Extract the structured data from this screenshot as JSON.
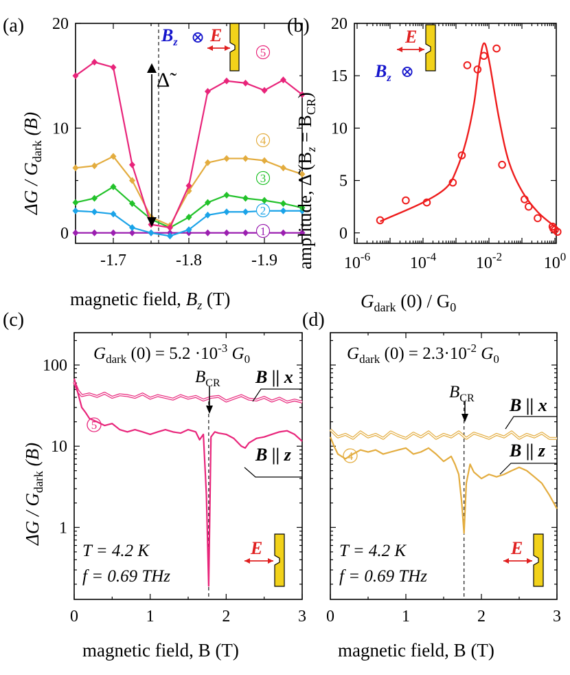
{
  "colors": {
    "s1": "#9b1fb0",
    "s2": "#1aa3e8",
    "s3": "#22c22a",
    "s4": "#e3ac3e",
    "s5": "#e8247a",
    "fit_b": "#ee1c1c",
    "efield": "#e02020",
    "bfield": "#1515cc",
    "contact": "#f2d21a"
  },
  "panels": {
    "a": {
      "label": "(a)",
      "xlabel": "magnetic field, ",
      "xlabel_sym": "B",
      "xlabel_sub": "z",
      "xlabel_unit": " (T)",
      "ylabel": "ΔG / G",
      "ylabel_sub": "dark",
      "ylabel_tail": " (B)",
      "delta_label": "Δ̃",
      "bz_label": "B",
      "bz_sub": "z",
      "bz_symbol": "⊗",
      "e_label": "E"
    },
    "b": {
      "label": "(b)",
      "xlabel_pre": "G",
      "xlabel_sub": "dark",
      "xlabel_post": " (0) / G",
      "xlabel_sub2": "0",
      "ylabel": "amplitude, Δ̃ (B",
      "ylabel_sub": "z",
      "ylabel_mid": " = B",
      "ylabel_sub2": "CR",
      "ylabel_end": ")",
      "bz_label": "B",
      "bz_sub": "z",
      "bz_symbol": "⊗",
      "e_label": "E"
    },
    "c": {
      "label": "(c)",
      "title_pre": "G",
      "title_sub": "dark",
      "title_post": " (0) = 5.2 ·10",
      "title_exp": "-3",
      "title_g0": " G",
      "title_g0_sub": "0",
      "bcr": "B",
      "bcr_sub": "CR",
      "bx_label": "B || x",
      "bz_label": "B || z",
      "series_num": "5",
      "temp": "T = 4.2 K",
      "freq": "f = 0.69 THz",
      "xlabel": "magnetic field, B (T)",
      "ylabel": "ΔG / G",
      "ylabel_sub": "dark",
      "ylabel_tail": " (B)",
      "e_label": "E"
    },
    "d": {
      "label": "(d)",
      "title_pre": "G",
      "title_sub": "dark",
      "title_post": " (0) = 2.3·10",
      "title_exp": "-2",
      "title_g0": " G",
      "title_g0_sub": "0",
      "bcr": "B",
      "bcr_sub": "CR",
      "bx_label": "B || x",
      "bz_label": "B || z",
      "series_num": "4",
      "temp": "T = 4.2 K",
      "freq": "f = 0.69 THz",
      "xlabel": "magnetic field, B (T)",
      "e_label": "E"
    }
  },
  "chart_data": [
    {
      "panel": "a",
      "type": "line",
      "xlim": [
        -1.65,
        -1.95
      ],
      "ylim": [
        -1,
        20
      ],
      "xticks": [
        "-1.7",
        "-1.8",
        "-1.9"
      ],
      "xtick_values": [
        -1.7,
        -1.8,
        -1.9
      ],
      "yticks": [
        "0",
        "10",
        "20"
      ],
      "ytick_values": [
        0,
        10,
        20
      ],
      "x": [
        -1.65,
        -1.675,
        -1.7,
        -1.725,
        -1.75,
        -1.775,
        -1.8,
        -1.825,
        -1.85,
        -1.875,
        -1.9,
        -1.925,
        -1.95
      ],
      "dashed_line_x": -1.76,
      "series": [
        {
          "name": "1",
          "color_key": "s1",
          "values": [
            0,
            0,
            0,
            0,
            0,
            0,
            0,
            0,
            0,
            0,
            0,
            0,
            0
          ]
        },
        {
          "name": "2",
          "color_key": "s2",
          "values": [
            2.1,
            2.0,
            1.8,
            0.5,
            0.0,
            -0.3,
            0.3,
            1.7,
            2.0,
            2.0,
            2.1,
            2.1,
            2.1
          ]
        },
        {
          "name": "3",
          "color_key": "s3",
          "values": [
            2.9,
            3.3,
            4.4,
            2.8,
            1.3,
            0.5,
            1.5,
            2.9,
            3.6,
            3.3,
            3.1,
            2.8,
            2.4
          ]
        },
        {
          "name": "4",
          "color_key": "s4",
          "values": [
            6.2,
            6.4,
            7.3,
            5.0,
            1.5,
            0.7,
            4.0,
            6.7,
            7.1,
            7.1,
            6.9,
            6.2,
            5.6
          ]
        },
        {
          "name": "5",
          "color_key": "s5",
          "values": [
            15.0,
            16.3,
            15.8,
            6.5,
            0.8,
            0.5,
            4.5,
            13.5,
            14.5,
            14.3,
            13.6,
            14.6,
            13.2
          ]
        }
      ]
    },
    {
      "panel": "b",
      "type": "scatter",
      "xscale": "log",
      "xlim": [
        1e-06,
        1
      ],
      "ylim": [
        -1,
        20
      ],
      "xticks": [
        "10",
        "10",
        "10",
        "10"
      ],
      "xtick_exps": [
        "-6",
        "-4",
        "-2",
        "0"
      ],
      "xtick_values": [
        1e-06,
        0.0001,
        0.01,
        1
      ],
      "yticks": [
        "0",
        "5",
        "10",
        "15",
        "20"
      ],
      "ytick_values": [
        0,
        5,
        10,
        15,
        20
      ],
      "points": {
        "x": [
          5e-06,
          3e-05,
          0.00013,
          0.0008,
          0.0015,
          0.0022,
          0.0045,
          0.007,
          0.017,
          0.025,
          0.12,
          0.16,
          0.3,
          0.85,
          0.9,
          1.0,
          1.2
        ],
        "y": [
          1.2,
          3.1,
          2.9,
          4.8,
          7.4,
          16.0,
          15.6,
          16.9,
          17.6,
          6.5,
          3.2,
          2.5,
          1.4,
          0.6,
          0.4,
          0.3,
          0.1
        ]
      },
      "fit": {
        "x": [
          5e-06,
          1e-05,
          0.0001,
          0.0005,
          0.001,
          0.002,
          0.0035,
          0.005,
          0.007,
          0.01,
          0.02,
          0.04,
          0.1,
          0.3,
          1.0,
          1.2
        ],
        "y": [
          1.1,
          1.5,
          2.9,
          4.3,
          5.9,
          8.7,
          12.3,
          16.0,
          18.1,
          16.5,
          11.0,
          6.8,
          4.0,
          2.0,
          0.6,
          0.4
        ]
      }
    },
    {
      "panel": "c",
      "type": "line",
      "yscale": "log",
      "xlim": [
        0,
        3
      ],
      "ylim": [
        0.13,
        250
      ],
      "xticks": [
        "0",
        "1",
        "2",
        "3"
      ],
      "xtick_values": [
        0,
        1,
        2,
        3
      ],
      "yticks": [
        "1",
        "10",
        "100"
      ],
      "ytick_values": [
        1,
        10,
        100
      ],
      "dashed_line_x": 1.77,
      "series": [
        {
          "name": "B || x",
          "color_key": "s5",
          "double_line": true,
          "x": [
            0.0,
            0.05,
            0.1,
            0.2,
            0.3,
            0.4,
            0.5,
            0.6,
            0.7,
            0.8,
            0.9,
            1.0,
            1.1,
            1.2,
            1.3,
            1.4,
            1.5,
            1.6,
            1.7,
            1.8,
            1.9,
            2.0,
            2.1,
            2.2,
            2.3,
            2.4,
            2.5,
            2.6,
            2.7,
            2.8,
            2.9,
            3.0
          ],
          "values": [
            62,
            48,
            42,
            44,
            41,
            45,
            40,
            43,
            42,
            40,
            44,
            39,
            42,
            40,
            38,
            42,
            39,
            41,
            37,
            40,
            41,
            36,
            39,
            42,
            38,
            37,
            40,
            36,
            39,
            35,
            37,
            35
          ]
        },
        {
          "name": "B || z",
          "color_key": "s5",
          "x": [
            0.0,
            0.05,
            0.1,
            0.15,
            0.2,
            0.3,
            0.4,
            0.5,
            0.6,
            0.7,
            0.8,
            0.9,
            1.0,
            1.1,
            1.2,
            1.3,
            1.4,
            1.5,
            1.6,
            1.65,
            1.7,
            1.74,
            1.77,
            1.8,
            1.85,
            1.9,
            2.0,
            2.1,
            2.2,
            2.25,
            2.3,
            2.4,
            2.5,
            2.6,
            2.7,
            2.8,
            2.9,
            3.0
          ],
          "values": [
            68,
            45,
            30,
            26,
            22,
            20,
            18,
            19,
            16,
            15,
            16,
            15,
            14,
            15,
            16,
            15,
            14.5,
            16,
            15,
            12,
            14,
            2.5,
            0.19,
            13,
            15,
            14.5,
            14,
            12.5,
            10,
            9.5,
            11,
            12.5,
            13,
            14,
            15,
            15.5,
            14,
            11.5
          ]
        }
      ]
    },
    {
      "panel": "d",
      "type": "line",
      "yscale": "log",
      "xlim": [
        0,
        3
      ],
      "ylim": [
        0.13,
        250
      ],
      "xticks": [
        "0",
        "1",
        "2",
        "3"
      ],
      "xtick_values": [
        0,
        1,
        2,
        3
      ],
      "yticks": [],
      "dashed_line_x": 1.77,
      "series": [
        {
          "name": "B || x",
          "color_key": "s4",
          "double_line": true,
          "x": [
            0.0,
            0.1,
            0.2,
            0.3,
            0.4,
            0.5,
            0.6,
            0.7,
            0.8,
            0.9,
            1.0,
            1.1,
            1.2,
            1.3,
            1.4,
            1.5,
            1.6,
            1.7,
            1.8,
            1.9,
            2.0,
            2.1,
            2.2,
            2.3,
            2.4,
            2.5,
            2.6,
            2.7,
            2.8,
            2.9,
            3.0
          ],
          "values": [
            16,
            13,
            14,
            12.5,
            15,
            13,
            14,
            12.5,
            15,
            13.5,
            12.5,
            14.5,
            13,
            15,
            12.5,
            14,
            13,
            15,
            12.5,
            14.5,
            13.5,
            12.5,
            14,
            13,
            15,
            12.5,
            14,
            13,
            14.5,
            12.5,
            12.5
          ]
        },
        {
          "name": "B || z",
          "color_key": "s4",
          "x": [
            0.0,
            0.05,
            0.1,
            0.2,
            0.3,
            0.4,
            0.5,
            0.6,
            0.7,
            0.8,
            0.9,
            1.0,
            1.1,
            1.2,
            1.3,
            1.4,
            1.5,
            1.6,
            1.65,
            1.7,
            1.74,
            1.77,
            1.8,
            1.85,
            1.9,
            2.0,
            2.1,
            2.2,
            2.3,
            2.4,
            2.5,
            2.6,
            2.7,
            2.8,
            2.9,
            3.0
          ],
          "values": [
            13,
            10,
            8,
            7,
            8,
            9,
            8.5,
            9,
            8,
            8.5,
            9,
            9.5,
            8,
            8.5,
            9.5,
            8,
            6.5,
            7.5,
            6,
            4.5,
            2,
            0.85,
            3.5,
            6,
            4.8,
            4,
            4.5,
            4.2,
            4.5,
            5,
            5.5,
            5,
            4.2,
            3.5,
            2.5,
            1.7
          ]
        }
      ]
    }
  ]
}
